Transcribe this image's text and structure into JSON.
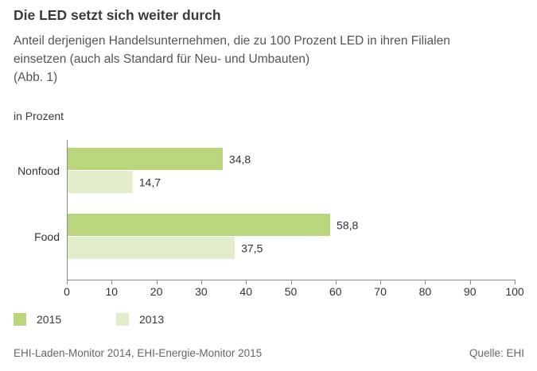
{
  "header": {
    "title": "Die LED setzt sich weiter durch",
    "subtitle_lines": [
      "Anteil derjenigen Handelsunternehmen, die zu 100 Prozent LED in ihren Filialen",
      "einsetzen (auch als Standard für Neu- und Umbauten)",
      "(Abb. 1)"
    ],
    "unit_label": "in Prozent"
  },
  "chart_data": {
    "type": "bar",
    "orientation": "horizontal",
    "categories": [
      "Nonfood",
      "Food"
    ],
    "series": [
      {
        "name": "2015",
        "values": [
          34.8,
          58.8
        ],
        "labels": [
          "34,8",
          "58,8"
        ],
        "color": "#b9d67c"
      },
      {
        "name": "2013",
        "values": [
          14.7,
          37.5
        ],
        "labels": [
          "14,7",
          "37,5"
        ],
        "color": "#e2eecb"
      }
    ],
    "xlim": [
      0,
      100
    ],
    "x_ticks": [
      0,
      10,
      20,
      30,
      40,
      50,
      60,
      70,
      80,
      90,
      100
    ],
    "xlabel": "",
    "ylabel": "in Prozent",
    "grid": false,
    "legend_position": "bottom-left"
  },
  "legend": [
    {
      "label": "2015",
      "color": "#b9d67c"
    },
    {
      "label": "2013",
      "color": "#e2eecb"
    }
  ],
  "footer": {
    "source_text": "EHI-Laden-Monitor 2014, EHI-Energie-Monitor 2015",
    "credit": "Quelle: EHI"
  }
}
